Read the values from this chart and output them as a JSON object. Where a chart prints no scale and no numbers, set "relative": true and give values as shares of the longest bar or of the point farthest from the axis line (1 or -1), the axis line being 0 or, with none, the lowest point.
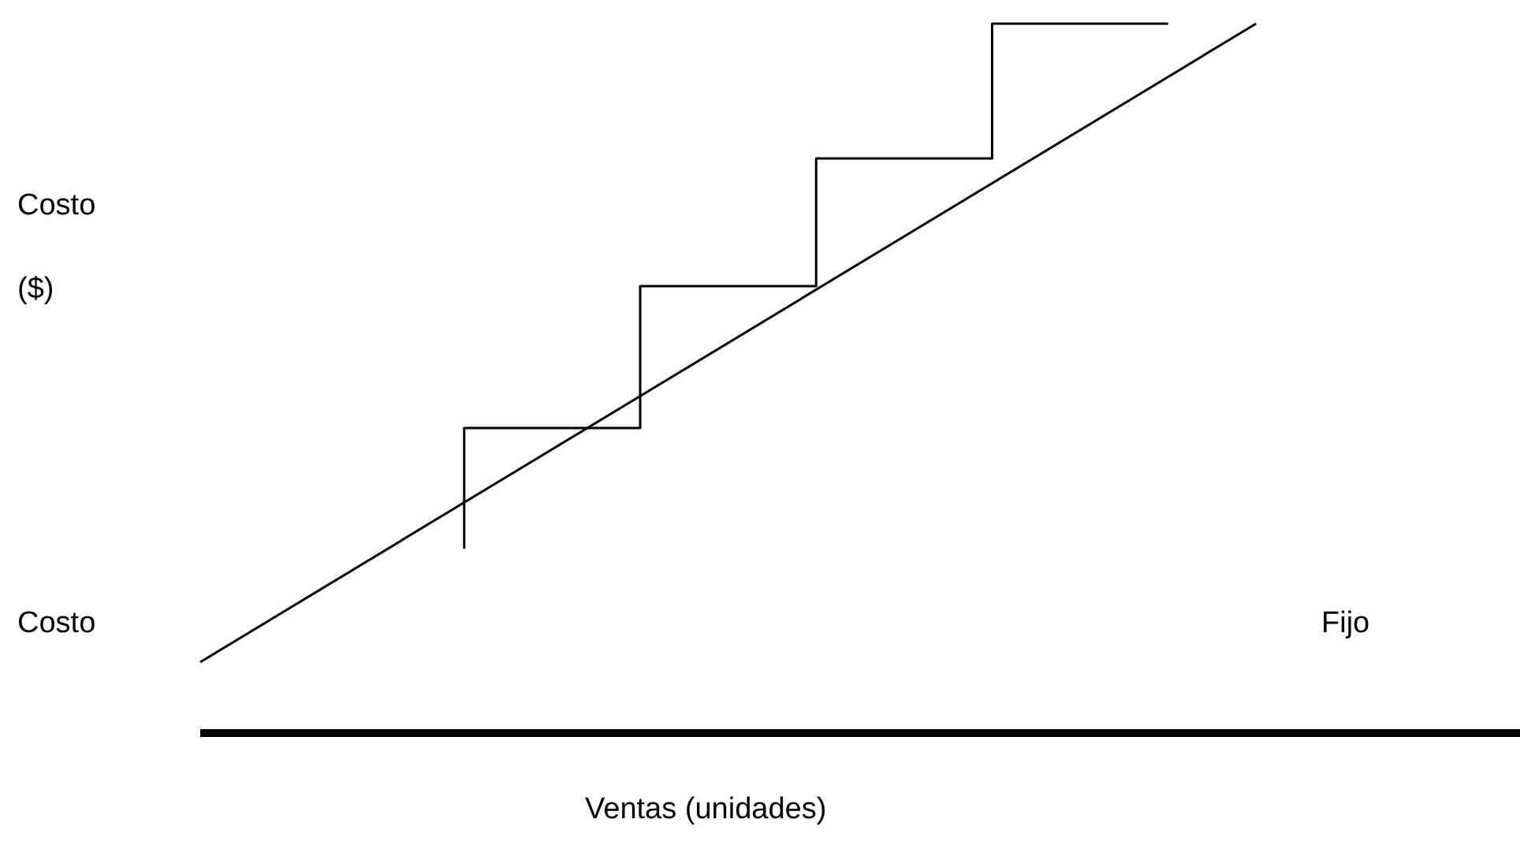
{
  "chart_data": {
    "type": "line",
    "relative": true,
    "xlabel": "Ventas (unidades)",
    "ylabel": "Costo ($)",
    "annotations": [
      "Costo",
      "Fijo"
    ],
    "legend": false,
    "marker": "none",
    "line_style": "solid",
    "categories": [
      null,
      null,
      null,
      null,
      null,
      null,
      null,
      null,
      null,
      null,
      null,
      null,
      null,
      null,
      null,
      null
    ],
    "series": [
      {
        "color": "#000000",
        "values": [
          0.1,
          null,
          null,
          null,
          null,
          null,
          null,
          null,
          null,
          null,
          null,
          null,
          1.0,
          null,
          null,
          null
        ]
      },
      {
        "type": "step",
        "color": "#000000",
        "values": [
          null,
          null,
          null,
          0.26,
          null,
          0.43,
          null,
          0.63,
          null,
          0.81,
          null,
          1.0,
          null,
          null,
          null,
          null
        ]
      }
    ]
  }
}
